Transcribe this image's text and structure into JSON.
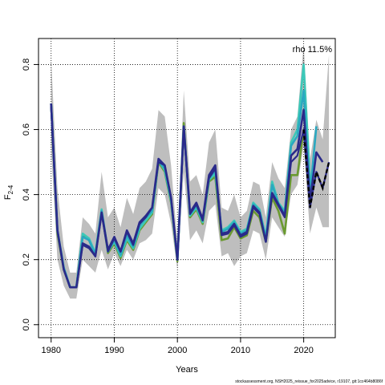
{
  "chart_data": {
    "type": "line",
    "title": "",
    "xlabel": "Years",
    "ylabel_main": "F",
    "ylabel_sub": "2-4",
    "annotation": "rho 11.5%",
    "footer": "stockassessment.org, NSH2025_reissue_for2025advice, r19107, git:1cc464b8086f",
    "xlim": [
      1978,
      2025
    ],
    "ylim": [
      -0.04,
      0.88
    ],
    "xticks": [
      1980,
      1990,
      2000,
      2010,
      2020
    ],
    "xtick_labels": [
      "1980",
      "1990",
      "2000",
      "2010",
      "2020"
    ],
    "yticks": [
      0.0,
      0.2,
      0.4,
      0.6,
      0.8
    ],
    "ytick_labels": [
      "0.0",
      "0.2",
      "0.4",
      "0.6",
      "0.8"
    ],
    "grid": "dotted",
    "colors": {
      "band": "#bebebe",
      "main": "#000000",
      "peels": [
        "#2a2a8a",
        "#2aa8c0",
        "#3cc8b8",
        "#6a9a30",
        "#b8c020"
      ]
    },
    "band": {
      "years": [
        1980,
        1981,
        1982,
        1983,
        1984,
        1985,
        1986,
        1987,
        1988,
        1989,
        1990,
        1991,
        1992,
        1993,
        1994,
        1995,
        1996,
        1997,
        1998,
        1999,
        2000,
        2001,
        2002,
        2003,
        2004,
        2005,
        2006,
        2007,
        2008,
        2009,
        2010,
        2011,
        2012,
        2013,
        2014,
        2015,
        2016,
        2017,
        2018,
        2019,
        2020,
        2021,
        2022,
        2023,
        2024
      ],
      "upper": [
        0.82,
        0.42,
        0.24,
        0.16,
        0.16,
        0.33,
        0.31,
        0.28,
        0.47,
        0.33,
        0.36,
        0.3,
        0.39,
        0.34,
        0.42,
        0.44,
        0.48,
        0.66,
        0.64,
        0.49,
        0.25,
        0.72,
        0.44,
        0.46,
        0.4,
        0.56,
        0.6,
        0.36,
        0.35,
        0.4,
        0.33,
        0.35,
        0.44,
        0.43,
        0.33,
        0.5,
        0.45,
        0.42,
        0.6,
        0.64,
        0.86,
        0.51,
        0.63,
        0.57,
        0.83
      ],
      "lower": [
        0.54,
        0.2,
        0.12,
        0.08,
        0.08,
        0.2,
        0.18,
        0.16,
        0.23,
        0.17,
        0.22,
        0.18,
        0.23,
        0.2,
        0.25,
        0.26,
        0.28,
        0.42,
        0.4,
        0.31,
        0.17,
        0.47,
        0.26,
        0.29,
        0.25,
        0.35,
        0.37,
        0.21,
        0.22,
        0.18,
        0.21,
        0.22,
        0.29,
        0.28,
        0.2,
        0.33,
        0.3,
        0.27,
        0.4,
        0.43,
        0.55,
        0.28,
        0.36,
        0.3,
        0.3
      ]
    },
    "series": [
      {
        "x": [
          1980,
          1981,
          1982,
          1983,
          1984,
          1985,
          1986,
          1987,
          1988,
          1989,
          1990,
          1991,
          1992,
          1993,
          1994,
          1995,
          1996,
          1997,
          1998,
          1999,
          2000,
          2001,
          2002,
          2003,
          2004,
          2005,
          2006,
          2007,
          2008,
          2009,
          2010,
          2011,
          2012,
          2013,
          2014,
          2015,
          2016,
          2017,
          2018,
          2019,
          2020,
          2021,
          2022,
          2023,
          2024
        ],
        "values": [
          0.67,
          0.29,
          0.17,
          0.115,
          0.115,
          0.245,
          0.235,
          0.21,
          0.34,
          0.225,
          0.265,
          0.225,
          0.285,
          0.245,
          0.31,
          0.33,
          0.36,
          0.5,
          0.49,
          0.39,
          0.2,
          0.6,
          0.34,
          0.37,
          0.32,
          0.45,
          0.48,
          0.275,
          0.28,
          0.305,
          0.27,
          0.28,
          0.36,
          0.34,
          0.255,
          0.4,
          0.365,
          0.33,
          0.5,
          0.52,
          0.6,
          0.36,
          0.47,
          0.42,
          0.5
        ]
      },
      {
        "x": [
          1980,
          1981,
          1982,
          1983,
          1984,
          1985,
          1986,
          1987,
          1988,
          1989,
          1990,
          1991,
          1992,
          1993,
          1994,
          1995,
          1996,
          1997,
          1998,
          1999,
          2000,
          2001,
          2002,
          2003,
          2004,
          2005,
          2006,
          2007,
          2008,
          2009,
          2010,
          2011,
          2012,
          2013,
          2014,
          2015,
          2016,
          2017,
          2018,
          2019,
          2020,
          2021,
          2022,
          2023
        ],
        "values": [
          0.68,
          0.29,
          0.17,
          0.115,
          0.115,
          0.25,
          0.24,
          0.21,
          0.345,
          0.23,
          0.27,
          0.225,
          0.29,
          0.25,
          0.315,
          0.335,
          0.36,
          0.51,
          0.49,
          0.39,
          0.2,
          0.61,
          0.345,
          0.375,
          0.325,
          0.46,
          0.49,
          0.28,
          0.285,
          0.31,
          0.275,
          0.285,
          0.365,
          0.345,
          0.255,
          0.405,
          0.37,
          0.335,
          0.52,
          0.54,
          0.66,
          0.38,
          0.53,
          0.5
        ]
      },
      {
        "x": [
          1980,
          1981,
          1982,
          1983,
          1984,
          1985,
          1986,
          1987,
          1988,
          1989,
          1990,
          1991,
          1992,
          1993,
          1994,
          1995,
          1996,
          1997,
          1998,
          1999,
          2000,
          2001,
          2002,
          2003,
          2004,
          2005,
          2006,
          2007,
          2008,
          2009,
          2010,
          2011,
          2012,
          2013,
          2014,
          2015,
          2016,
          2017,
          2018,
          2019,
          2020,
          2021,
          2022
        ],
        "values": [
          0.68,
          0.29,
          0.175,
          0.115,
          0.115,
          0.27,
          0.26,
          0.215,
          0.35,
          0.225,
          0.26,
          0.215,
          0.275,
          0.24,
          0.305,
          0.33,
          0.35,
          0.505,
          0.48,
          0.385,
          0.2,
          0.61,
          0.34,
          0.365,
          0.32,
          0.45,
          0.475,
          0.285,
          0.295,
          0.315,
          0.28,
          0.29,
          0.37,
          0.35,
          0.265,
          0.43,
          0.37,
          0.345,
          0.55,
          0.58,
          0.72,
          0.4,
          0.61
        ]
      },
      {
        "x": [
          1980,
          1981,
          1982,
          1983,
          1984,
          1985,
          1986,
          1987,
          1988,
          1989,
          1990,
          1991,
          1992,
          1993,
          1994,
          1995,
          1996,
          1997,
          1998,
          1999,
          2000,
          2001,
          2002,
          2003,
          2004,
          2005,
          2006,
          2007,
          2008,
          2009,
          2010,
          2011,
          2012,
          2013,
          2014,
          2015,
          2016,
          2017,
          2018,
          2019,
          2020,
          2021
        ],
        "values": [
          0.68,
          0.29,
          0.175,
          0.115,
          0.115,
          0.28,
          0.265,
          0.22,
          0.355,
          0.225,
          0.255,
          0.21,
          0.265,
          0.235,
          0.295,
          0.32,
          0.345,
          0.505,
          0.475,
          0.38,
          0.2,
          0.61,
          0.335,
          0.36,
          0.315,
          0.445,
          0.465,
          0.29,
          0.3,
          0.32,
          0.285,
          0.295,
          0.375,
          0.355,
          0.27,
          0.44,
          0.375,
          0.35,
          0.56,
          0.6,
          0.8,
          0.44
        ]
      },
      {
        "x": [
          1980,
          1981,
          1982,
          1983,
          1984,
          1985,
          1986,
          1987,
          1988,
          1989,
          1990,
          1991,
          1992,
          1993,
          1994,
          1995,
          1996,
          1997,
          1998,
          1999,
          2000,
          2001,
          2002,
          2003,
          2004,
          2005,
          2006,
          2007,
          2008,
          2009,
          2010,
          2011,
          2012,
          2013,
          2014,
          2015,
          2016,
          2017,
          2018,
          2019,
          2020
        ],
        "values": [
          0.68,
          0.28,
          0.17,
          0.115,
          0.115,
          0.275,
          0.26,
          0.215,
          0.35,
          0.22,
          0.25,
          0.205,
          0.26,
          0.23,
          0.29,
          0.315,
          0.34,
          0.5,
          0.47,
          0.375,
          0.195,
          0.62,
          0.33,
          0.355,
          0.31,
          0.44,
          0.455,
          0.26,
          0.265,
          0.3,
          0.265,
          0.275,
          0.35,
          0.33,
          0.255,
          0.39,
          0.35,
          0.28,
          0.46,
          0.46,
          0.6
        ]
      }
    ]
  }
}
